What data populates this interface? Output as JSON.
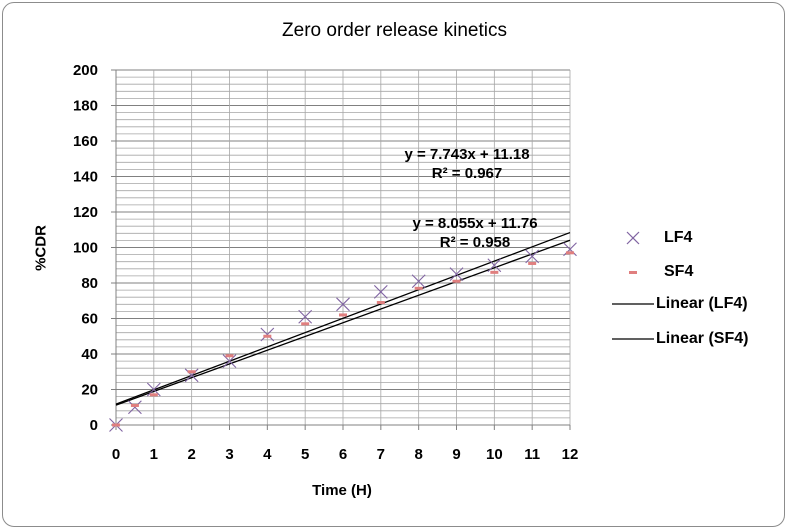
{
  "chart_data": {
    "type": "scatter",
    "title": "Zero order release kinetics",
    "xlabel": "Time (H)",
    "ylabel": "%CDR",
    "xlim": [
      0,
      12
    ],
    "ylim": [
      0,
      200
    ],
    "xticks": [
      0,
      1,
      2,
      3,
      4,
      5,
      6,
      7,
      8,
      9,
      10,
      11,
      12
    ],
    "yticks": [
      0,
      20,
      40,
      60,
      80,
      100,
      120,
      140,
      160,
      180,
      200
    ],
    "grid": true,
    "legend_position": "right",
    "series": [
      {
        "name": "LF4",
        "marker": "x",
        "color": "#8064a2",
        "x": [
          0,
          0.5,
          1,
          2,
          3,
          4,
          5,
          6,
          7,
          8,
          9,
          10,
          11,
          12
        ],
        "y": [
          0,
          10,
          20,
          28,
          36,
          51,
          61,
          68,
          75,
          81,
          85,
          90,
          95,
          99
        ]
      },
      {
        "name": "SF4",
        "marker": "dash",
        "color": "#e07f7f",
        "x": [
          0,
          0.5,
          1,
          2,
          3,
          4,
          5,
          6,
          7,
          8,
          9,
          10,
          11,
          12
        ],
        "y": [
          0,
          11,
          17,
          30,
          39,
          50,
          57,
          62,
          69,
          77,
          81,
          86,
          91,
          97
        ]
      },
      {
        "name": "Linear (LF4)",
        "type": "trendline",
        "color": "#000000",
        "slope": 8.055,
        "intercept": 11.76,
        "equation": "y = 8.055x + 11.76",
        "r2": "R² = 0.958"
      },
      {
        "name": "Linear (SF4)",
        "type": "trendline",
        "color": "#000000",
        "slope": 7.743,
        "intercept": 11.18,
        "equation": "y = 7.743x + 11.18",
        "r2": "R² = 0.967"
      }
    ]
  }
}
